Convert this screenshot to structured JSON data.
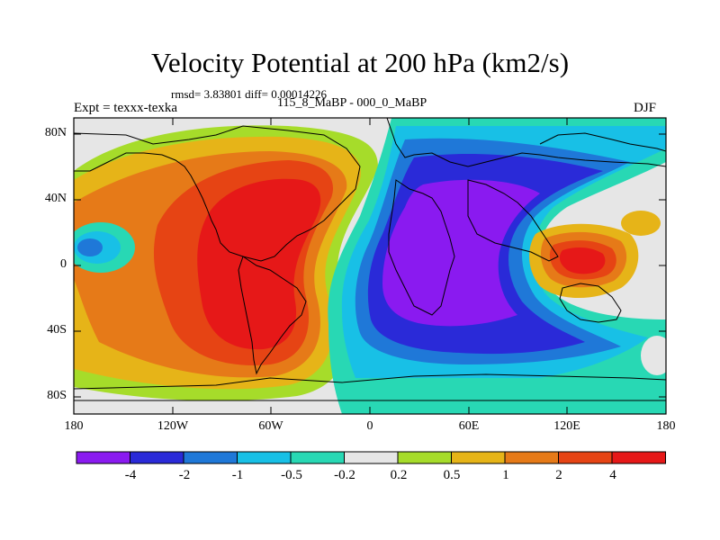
{
  "title": "Velocity Potential at 200 hPa (km2/s)",
  "subtitle": "rmsd= 3.83801 diff= 0.00014226",
  "left_string": "Expt = texxx-texka",
  "center_string": "115_8_MaBP - 000_0_MaBP",
  "right_string": "DJF",
  "y_ticks": [
    "80N",
    "40N",
    "0",
    "40S",
    "80S"
  ],
  "x_ticks": [
    "180",
    "120W",
    "60W",
    "0",
    "60E",
    "120E",
    "180"
  ],
  "colorbar": {
    "colors": [
      "#8a1af0",
      "#2a2ad8",
      "#1f78d8",
      "#18c0e6",
      "#28d8b4",
      "#e6e6e6",
      "#a6dc2a",
      "#e6b418",
      "#e67a18",
      "#e64414",
      "#e61818"
    ],
    "labels": [
      "-4",
      "-2",
      "-1",
      "-0.5",
      "-0.2",
      "0.2",
      "0.5",
      "1",
      "2",
      "4"
    ]
  }
}
